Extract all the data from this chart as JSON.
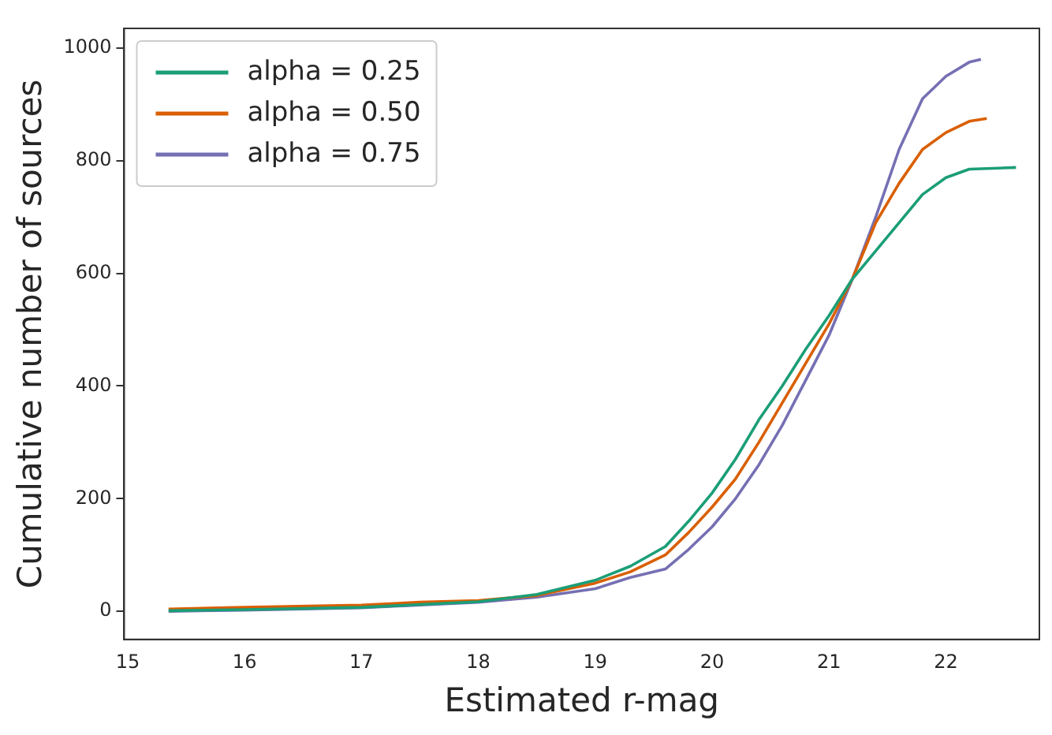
{
  "chart_data": {
    "type": "line",
    "xlabel": "Estimated r-mag",
    "ylabel": "Cumulative number of sources",
    "xlim": [
      14.97,
      22.8
    ],
    "ylim": [
      -50,
      1035
    ],
    "xticks": [
      15,
      16,
      17,
      18,
      19,
      20,
      21,
      22
    ],
    "yticks": [
      0,
      200,
      400,
      600,
      800,
      1000
    ],
    "grid": false,
    "legend": "top left",
    "marker": "none",
    "line_style": "solid",
    "series": [
      {
        "name": "alpha = 0.25",
        "color": "#1b9e77",
        "x": [
          15.35,
          16,
          17,
          17.5,
          18,
          18.5,
          19,
          19.3,
          19.6,
          19.8,
          20,
          20.2,
          20.4,
          20.6,
          20.8,
          21,
          21.2,
          21.4,
          21.6,
          21.8,
          22,
          22.2,
          22.6
        ],
        "values": [
          1,
          3,
          7,
          12,
          17,
          30,
          55,
          80,
          115,
          160,
          210,
          270,
          340,
          400,
          465,
          525,
          590,
          640,
          690,
          740,
          770,
          785,
          788
        ]
      },
      {
        "name": "alpha = 0.50",
        "color": "#d95f02",
        "x": [
          15.35,
          16,
          17,
          17.5,
          18,
          18.5,
          19,
          19.3,
          19.6,
          19.8,
          20,
          20.2,
          20.4,
          20.6,
          20.8,
          21,
          21.2,
          21.4,
          21.6,
          21.8,
          22,
          22.2,
          22.35
        ],
        "values": [
          4,
          7,
          11,
          16,
          19,
          28,
          50,
          70,
          100,
          140,
          185,
          235,
          300,
          370,
          440,
          510,
          590,
          690,
          760,
          820,
          850,
          870,
          875
        ]
      },
      {
        "name": "alpha = 0.75",
        "color": "#7570b3",
        "x": [
          15.35,
          16,
          17,
          17.5,
          18,
          18.5,
          19,
          19.3,
          19.6,
          19.8,
          20,
          20.2,
          20.4,
          20.6,
          20.8,
          21,
          21.2,
          21.4,
          21.6,
          21.8,
          22,
          22.2,
          22.3
        ],
        "values": [
          0,
          2,
          6,
          11,
          16,
          25,
          40,
          60,
          75,
          110,
          150,
          200,
          260,
          330,
          410,
          490,
          590,
          700,
          820,
          910,
          950,
          975,
          980
        ]
      }
    ]
  }
}
